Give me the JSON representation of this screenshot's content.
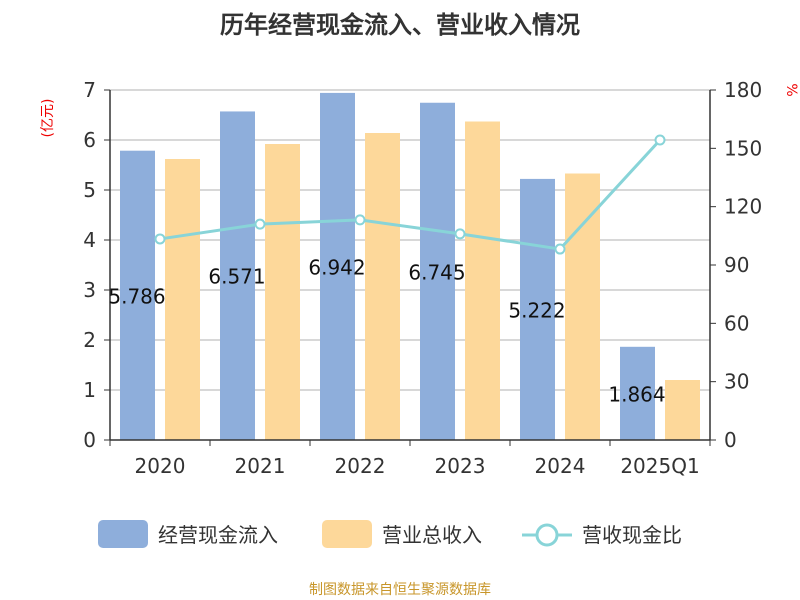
{
  "chart_data": {
    "type": "bar",
    "title": "历年经营现金流入、营业收入情况",
    "categories": [
      "2020",
      "2021",
      "2022",
      "2023",
      "2024",
      "2025Q1"
    ],
    "series": [
      {
        "name": "经营现金流入",
        "type": "bar",
        "axis": "left",
        "color": "#8eaedb",
        "values": [
          5.786,
          6.571,
          6.942,
          6.745,
          5.222,
          1.864
        ],
        "labels": [
          "5.786",
          "6.571",
          "6.942",
          "6.745",
          "5.222",
          "1.864"
        ]
      },
      {
        "name": "营业总收入",
        "type": "bar",
        "axis": "left",
        "color": "#fdd89a",
        "values": [
          5.62,
          5.92,
          6.14,
          6.37,
          5.33,
          1.2
        ]
      },
      {
        "name": "营收现金比",
        "type": "line",
        "axis": "right",
        "color": "#88d4d8",
        "values": [
          103.4,
          111,
          113.2,
          106,
          98.2,
          154.3
        ]
      }
    ],
    "ylabel": "(亿元)",
    "y2label": "%",
    "ylim": [
      0,
      7
    ],
    "yticks": [
      "0",
      "1",
      "2",
      "3",
      "4",
      "5",
      "6",
      "7"
    ],
    "y2lim": [
      0,
      180
    ],
    "y2ticks": [
      "0",
      "30",
      "60",
      "90",
      "120",
      "150",
      "180"
    ],
    "grid": true,
    "legend": "bottom",
    "source": "制图数据来自恒生聚源数据库"
  }
}
